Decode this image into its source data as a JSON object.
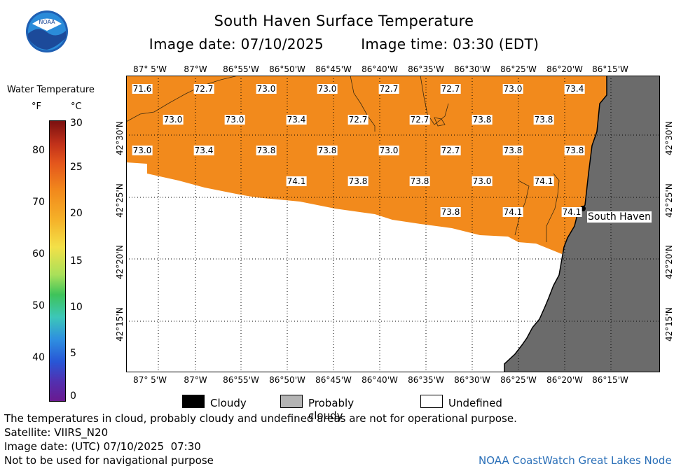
{
  "header": {
    "title": "South Haven Surface Temperature",
    "image_date": "Image date: 07/10/2025",
    "image_time": "Image time: 03:30 (EDT)"
  },
  "logo": {
    "text": "NOAA"
  },
  "legend": {
    "title": "Water Temperature",
    "unit_f": "°F",
    "unit_c": "°C",
    "f_ticks": [
      "80",
      "70",
      "60",
      "50",
      "40"
    ],
    "c_ticks": [
      "30",
      "25",
      "20",
      "15",
      "10",
      "5",
      "0"
    ]
  },
  "map": {
    "lon_labels": [
      "87° 5'W",
      "87°W",
      "86°55'W",
      "86°50'W",
      "86°45'W",
      "86°40'W",
      "86°35'W",
      "86°30'W",
      "86°25'W",
      "86°20'W",
      "86°15'W"
    ],
    "lat_labels": [
      "42°30'N",
      "42°25'N",
      "42°20'N",
      "42°15'N"
    ],
    "place_label": "South Haven",
    "temperature_labels": [
      "71.6",
      "72.7",
      "73.0",
      "73.0",
      "72.7",
      "72.7",
      "73.0",
      "73.4",
      "73.0",
      "73.0",
      "73.4",
      "72.7",
      "72.7",
      "73.8",
      "73.8",
      "73.0",
      "73.4",
      "73.8",
      "73.8",
      "73.0",
      "72.7",
      "73.8",
      "73.8",
      "74.1",
      "73.8",
      "73.8",
      "73.0",
      "74.1",
      "73.8",
      "74.1",
      "74.1"
    ],
    "colors": {
      "water": "#f28a1c",
      "land": "#6b6b6b",
      "undefined": "#ffffff"
    }
  },
  "key": {
    "cloudy": "Cloudy",
    "probably_cloudy": "Probably cloudy",
    "undefined": "Undefined"
  },
  "footer": {
    "note": "The temperatures in cloud, probably cloudy and undefined areas are not for operational purpose.",
    "satellite": "Satellite: VIIRS_N20",
    "utc_date": "Image date: (UTC) 07/10/2025  07:30",
    "nav": "Not to be used for navigational purpose",
    "credit": "NOAA CoastWatch Great Lakes Node"
  }
}
